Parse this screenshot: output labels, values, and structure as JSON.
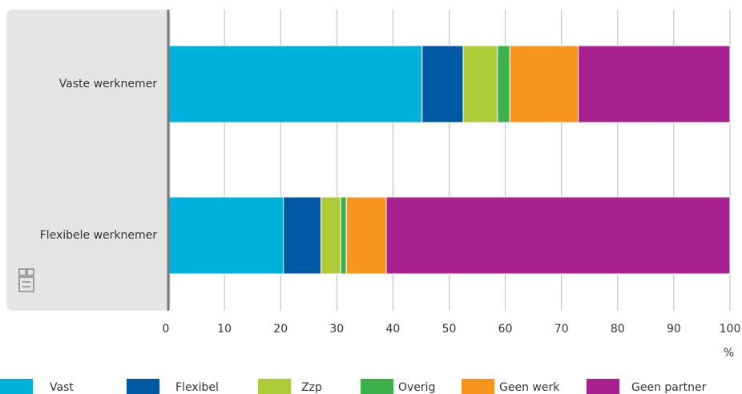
{
  "chart_data": {
    "type": "stacked_barh",
    "categories": [
      "Vaste werknemer",
      "Flexibele werknemer"
    ],
    "series": [
      {
        "name": "Vast",
        "color": "#00b1dc",
        "values": [
          45.2,
          20.5
        ]
      },
      {
        "name": "Flexibel",
        "color": "#0058a5",
        "values": [
          7.3,
          6.7
        ]
      },
      {
        "name": "Zzp",
        "color": "#afcb37",
        "values": [
          6.1,
          3.5
        ]
      },
      {
        "name": "Overig",
        "color": "#3cb04a",
        "values": [
          2.2,
          1.0
        ]
      },
      {
        "name": "Geen werk",
        "color": "#f7941d",
        "values": [
          12.2,
          7.1
        ]
      },
      {
        "name": "Geen partner",
        "color": "#a8218e",
        "values": [
          27.0,
          61.2
        ]
      }
    ],
    "x_label": "%",
    "xlim": [
      0,
      100
    ],
    "xticks": [
      0,
      10,
      20,
      30,
      40,
      50,
      60,
      70,
      80,
      90,
      100
    ],
    "grid": true,
    "legend": "bottom"
  }
}
